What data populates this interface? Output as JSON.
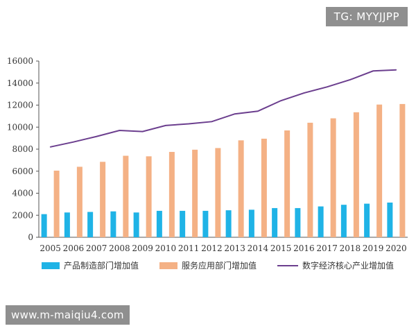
{
  "watermarks": {
    "top": "TG: MYYJJPP",
    "bottom": "www.m-maiqiu4.com"
  },
  "legend": {
    "manufacturing": "产品制造部门增加值",
    "services": "服务应用部门增加值",
    "core": "数字经济核心产业增加值"
  },
  "colors": {
    "manufacturing": "#1fb3e6",
    "services": "#f4b185",
    "core": "#6b3e8e",
    "axis": "#555555"
  },
  "chart_data": {
    "type": "bar+line",
    "categories": [
      "2005",
      "2006",
      "2007",
      "2008",
      "2009",
      "2010",
      "2011",
      "2012",
      "2013",
      "2014",
      "2015",
      "2016",
      "2017",
      "2018",
      "2019",
      "2020"
    ],
    "series": [
      {
        "name": "产品制造部门增加值",
        "kind": "bar",
        "values": [
          2100,
          2250,
          2300,
          2350,
          2250,
          2400,
          2400,
          2400,
          2450,
          2500,
          2650,
          2650,
          2800,
          2950,
          3050,
          3150
        ]
      },
      {
        "name": "服务应用部门增加值",
        "kind": "bar",
        "values": [
          6050,
          6400,
          6850,
          7400,
          7350,
          7750,
          7950,
          8100,
          8800,
          8950,
          9700,
          10400,
          10800,
          11350,
          12050,
          12100
        ]
      },
      {
        "name": "数字经济核心产业增加值",
        "kind": "line",
        "values": [
          8200,
          8650,
          9150,
          9700,
          9600,
          10150,
          10300,
          10500,
          11200,
          11450,
          12400,
          13100,
          13650,
          14300,
          15100,
          15200
        ]
      }
    ],
    "yticks": [
      0,
      2000,
      4000,
      6000,
      8000,
      10000,
      12000,
      14000,
      16000
    ],
    "ylim": [
      0,
      16000
    ],
    "title": "",
    "xlabel": "",
    "ylabel": ""
  }
}
